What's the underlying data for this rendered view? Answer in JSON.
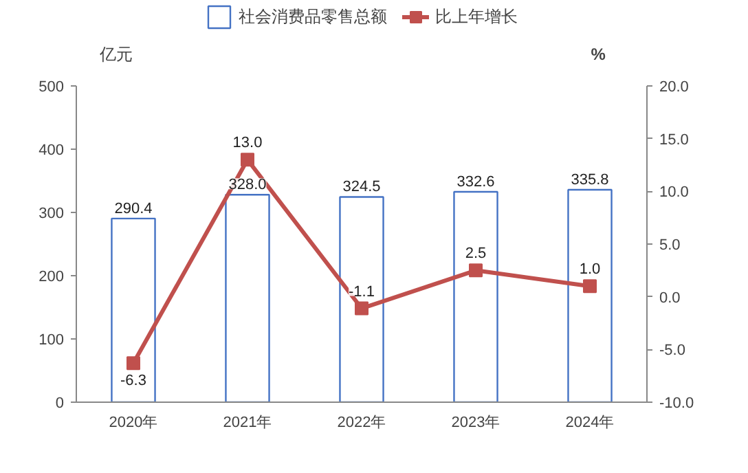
{
  "chart_data": {
    "type": "bar",
    "categories": [
      "2020年",
      "2021年",
      "2022年",
      "2023年",
      "2024年"
    ],
    "ylabel": "亿元",
    "y2label": "%",
    "ylim": [
      0,
      500
    ],
    "yticks": [
      0,
      100,
      200,
      300,
      400,
      500
    ],
    "y2lim": [
      -10,
      20
    ],
    "y2ticks": [
      {
        "value": -10,
        "label": "-10.0"
      },
      {
        "value": -5,
        "label": "-5.0"
      },
      {
        "value": 0,
        "label": "0.0"
      },
      {
        "value": 5,
        "label": "5.0"
      },
      {
        "value": 10,
        "label": "10.0"
      },
      {
        "value": 15,
        "label": "15.0"
      },
      {
        "value": 20,
        "label": "20.0"
      }
    ],
    "series": [
      {
        "name": "社会消费品零售总额",
        "color": "#4472c4",
        "values": [
          290.4,
          328.0,
          324.5,
          332.6,
          335.8
        ],
        "value_labels": [
          "290.4",
          "328.0",
          "324.5",
          "332.6",
          "335.8"
        ]
      },
      {
        "name": "比上年增长",
        "type": "line",
        "axis": "y2",
        "color": "#c0504d",
        "marker": "square",
        "values": [
          -6.3,
          13.0,
          -1.1,
          2.5,
          1.0
        ],
        "value_labels": [
          "-6.3",
          "13.0",
          "-1.1",
          "2.5",
          "1.0"
        ]
      }
    ],
    "legend": "top",
    "grid": false
  }
}
